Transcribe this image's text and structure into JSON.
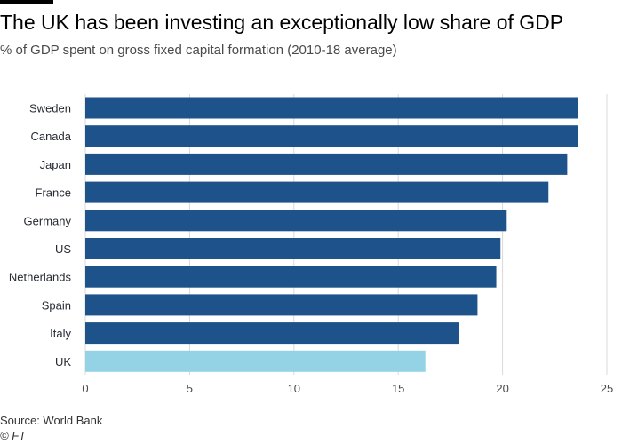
{
  "chart_data": {
    "type": "bar",
    "orientation": "horizontal",
    "title": "The UK has been investing an exceptionally low share of GDP",
    "subtitle": "% of GDP spent on gross fixed capital formation (2010-18 average)",
    "categories": [
      "Sweden",
      "Canada",
      "Japan",
      "France",
      "Germany",
      "US",
      "Netherlands",
      "Spain",
      "Italy",
      "UK"
    ],
    "values": [
      23.6,
      23.6,
      23.1,
      22.2,
      20.2,
      19.9,
      19.7,
      18.8,
      17.9,
      16.3
    ],
    "highlight": "UK",
    "xlim": [
      0,
      25
    ],
    "xticks": [
      "0",
      "5",
      "10",
      "15",
      "20",
      "25"
    ],
    "grid": "vertical",
    "colors": {
      "bar": "#1e528a",
      "highlight": "#94d3e6",
      "grid": "#d9d9d9"
    },
    "source": "Source: World Bank",
    "credit": "© FT"
  }
}
